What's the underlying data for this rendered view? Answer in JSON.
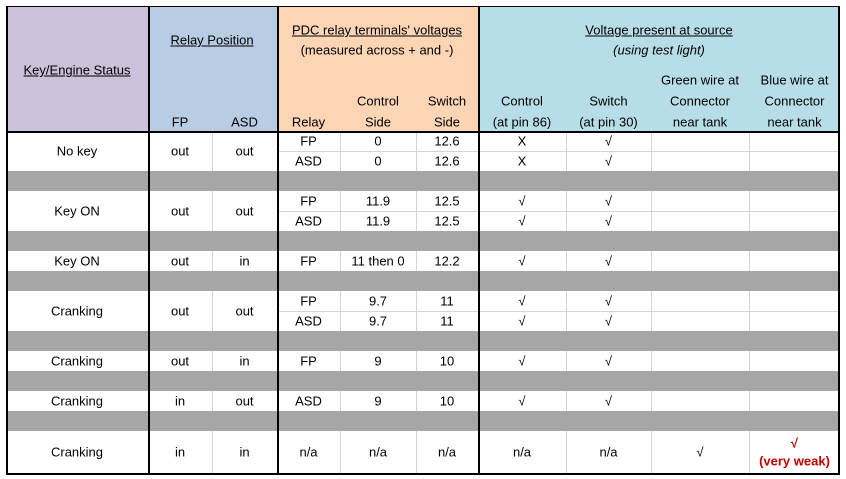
{
  "header": {
    "key_status": "Key/Engine Status",
    "relay_position": "Relay Position",
    "fp": "FP",
    "asd": "ASD",
    "pdc_title": "PDC relay terminals' voltages",
    "pdc_subtitle": "(measured across + and -)",
    "relay": "Relay",
    "control_side": [
      "Control",
      "Side"
    ],
    "switch_side": [
      "Switch",
      "Side"
    ],
    "source_title": "Voltage present at source",
    "source_subtitle": "(using test light)",
    "control_pin": [
      "Control",
      "(at pin 86)"
    ],
    "switch_pin": [
      "Switch",
      "(at pin 30)"
    ],
    "green_wire": [
      "Green wire at",
      "Connector",
      "near tank"
    ],
    "blue_wire": [
      "Blue wire at",
      "Connector",
      "near tank"
    ]
  },
  "groups": [
    {
      "status": "No key",
      "fp": "out",
      "asd": "out",
      "rows": [
        [
          "FP",
          "0",
          "12.6",
          "X",
          "√",
          null,
          null
        ],
        [
          "ASD",
          "0",
          "12.6",
          "X",
          "√",
          null,
          null
        ]
      ]
    },
    {
      "status": "Key ON",
      "fp": "out",
      "asd": "out",
      "rows": [
        [
          "FP",
          "11.9",
          "12.5",
          "√",
          "√",
          null,
          null
        ],
        [
          "ASD",
          "11.9",
          "12.5",
          "√",
          "√",
          null,
          null
        ]
      ]
    },
    {
      "status": "Key ON",
      "fp": "out",
      "asd": "in",
      "rows": [
        [
          "FP",
          "11 then 0",
          "12.2",
          "√",
          "√",
          null,
          null
        ]
      ]
    },
    {
      "status": "Cranking",
      "fp": "out",
      "asd": "out",
      "rows": [
        [
          "FP",
          "9.7",
          "11",
          "√",
          "√",
          null,
          null
        ],
        [
          "ASD",
          "9.7",
          "11",
          "√",
          "√",
          null,
          null
        ]
      ]
    },
    {
      "status": "Cranking",
      "fp": "out",
      "asd": "in",
      "rows": [
        [
          "FP",
          "9",
          "10",
          "√",
          "√",
          null,
          null
        ]
      ]
    },
    {
      "status": "Cranking",
      "fp": "in",
      "asd": "out",
      "rows": [
        [
          "ASD",
          "9",
          "10",
          "√",
          "√",
          null,
          null
        ]
      ]
    },
    {
      "status": "Cranking",
      "fp": "in",
      "asd": "in",
      "rows": [
        [
          "n/a",
          "n/a",
          "n/a",
          "n/a",
          "n/a",
          "√",
          "√"
        ]
      ],
      "note": "(very weak)"
    }
  ]
}
